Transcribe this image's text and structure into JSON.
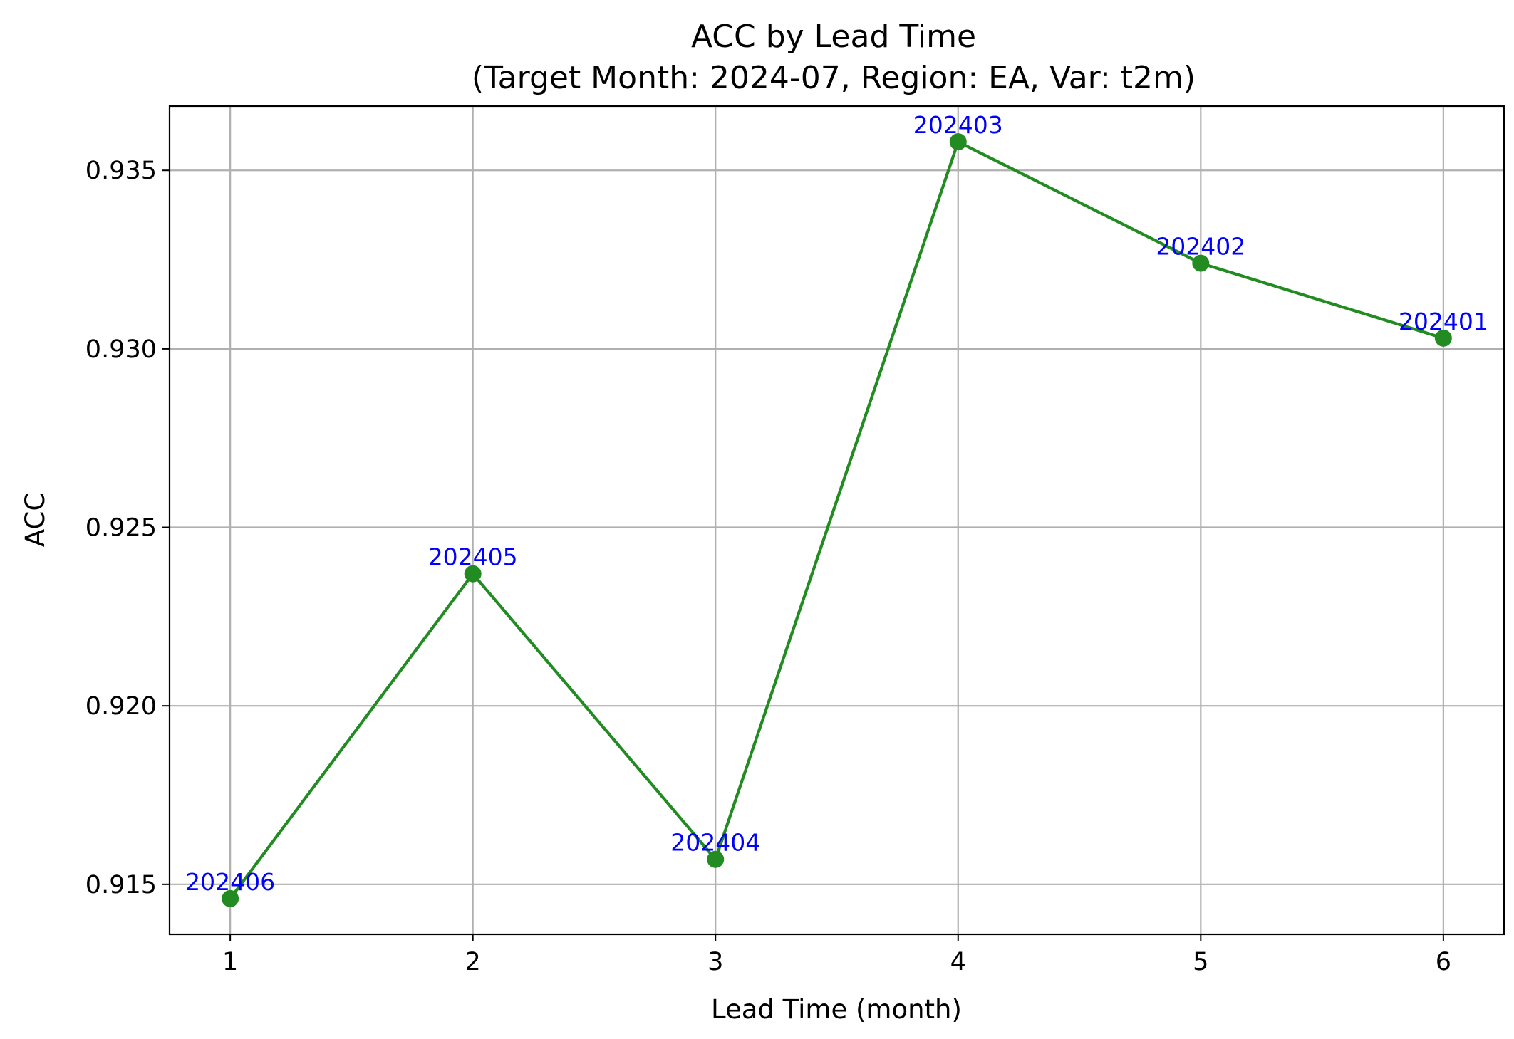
{
  "chart_data": {
    "type": "line",
    "title": "ACC by Lead Time",
    "subtitle": "(Target Month: 2024-07, Region: EA, Var: t2m)",
    "xlabel": "Lead Time (month)",
    "ylabel": "ACC",
    "x": [
      1,
      2,
      3,
      4,
      5,
      6
    ],
    "xticks": [
      "1",
      "2",
      "3",
      "4",
      "5",
      "6"
    ],
    "xlim": [
      0.75,
      6.25
    ],
    "ylim": [
      0.9136,
      0.9368
    ],
    "yticks": [
      "0.915",
      "0.920",
      "0.925",
      "0.930",
      "0.935"
    ],
    "ytick_values": [
      0.915,
      0.92,
      0.925,
      0.93,
      0.935
    ],
    "grid": true,
    "series": [
      {
        "values": [
          0.9146,
          0.9237,
          0.9157,
          0.9358,
          0.9324,
          0.9303
        ],
        "point_labels": [
          "202406",
          "202405",
          "202404",
          "202403",
          "202402",
          "202401"
        ],
        "color": "#228b22",
        "label_color": "#0000ff"
      }
    ]
  }
}
